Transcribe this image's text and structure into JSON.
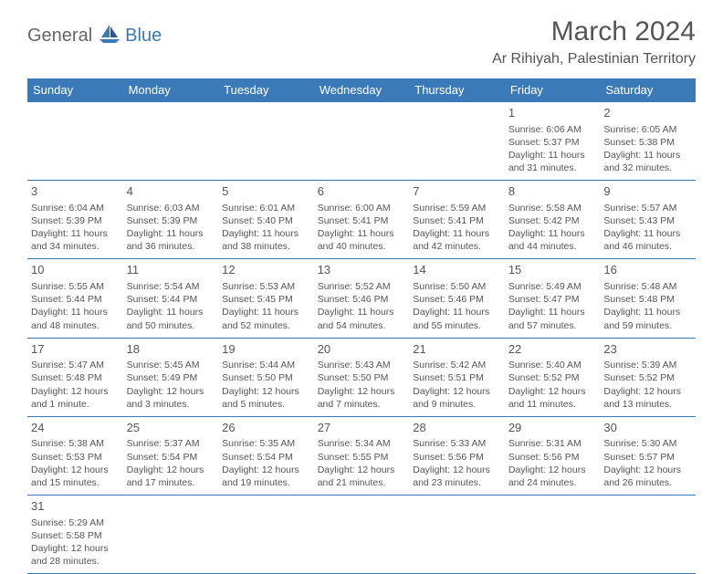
{
  "logo": {
    "text1": "General",
    "text2": "Blue"
  },
  "title": "March 2024",
  "location": "Ar Rihiyah, Palestinian Territory",
  "colors": {
    "accent": "#3a7ab8",
    "text": "#555555",
    "bg": "#ffffff"
  },
  "weekdays": [
    "Sunday",
    "Monday",
    "Tuesday",
    "Wednesday",
    "Thursday",
    "Friday",
    "Saturday"
  ],
  "weeks": [
    [
      null,
      null,
      null,
      null,
      null,
      {
        "n": "1",
        "sr": "6:06 AM",
        "ss": "5:37 PM",
        "dl": "11 hours and 31 minutes."
      },
      {
        "n": "2",
        "sr": "6:05 AM",
        "ss": "5:38 PM",
        "dl": "11 hours and 32 minutes."
      }
    ],
    [
      {
        "n": "3",
        "sr": "6:04 AM",
        "ss": "5:39 PM",
        "dl": "11 hours and 34 minutes."
      },
      {
        "n": "4",
        "sr": "6:03 AM",
        "ss": "5:39 PM",
        "dl": "11 hours and 36 minutes."
      },
      {
        "n": "5",
        "sr": "6:01 AM",
        "ss": "5:40 PM",
        "dl": "11 hours and 38 minutes."
      },
      {
        "n": "6",
        "sr": "6:00 AM",
        "ss": "5:41 PM",
        "dl": "11 hours and 40 minutes."
      },
      {
        "n": "7",
        "sr": "5:59 AM",
        "ss": "5:41 PM",
        "dl": "11 hours and 42 minutes."
      },
      {
        "n": "8",
        "sr": "5:58 AM",
        "ss": "5:42 PM",
        "dl": "11 hours and 44 minutes."
      },
      {
        "n": "9",
        "sr": "5:57 AM",
        "ss": "5:43 PM",
        "dl": "11 hours and 46 minutes."
      }
    ],
    [
      {
        "n": "10",
        "sr": "5:55 AM",
        "ss": "5:44 PM",
        "dl": "11 hours and 48 minutes."
      },
      {
        "n": "11",
        "sr": "5:54 AM",
        "ss": "5:44 PM",
        "dl": "11 hours and 50 minutes."
      },
      {
        "n": "12",
        "sr": "5:53 AM",
        "ss": "5:45 PM",
        "dl": "11 hours and 52 minutes."
      },
      {
        "n": "13",
        "sr": "5:52 AM",
        "ss": "5:46 PM",
        "dl": "11 hours and 54 minutes."
      },
      {
        "n": "14",
        "sr": "5:50 AM",
        "ss": "5:46 PM",
        "dl": "11 hours and 55 minutes."
      },
      {
        "n": "15",
        "sr": "5:49 AM",
        "ss": "5:47 PM",
        "dl": "11 hours and 57 minutes."
      },
      {
        "n": "16",
        "sr": "5:48 AM",
        "ss": "5:48 PM",
        "dl": "11 hours and 59 minutes."
      }
    ],
    [
      {
        "n": "17",
        "sr": "5:47 AM",
        "ss": "5:48 PM",
        "dl": "12 hours and 1 minute."
      },
      {
        "n": "18",
        "sr": "5:45 AM",
        "ss": "5:49 PM",
        "dl": "12 hours and 3 minutes."
      },
      {
        "n": "19",
        "sr": "5:44 AM",
        "ss": "5:50 PM",
        "dl": "12 hours and 5 minutes."
      },
      {
        "n": "20",
        "sr": "5:43 AM",
        "ss": "5:50 PM",
        "dl": "12 hours and 7 minutes."
      },
      {
        "n": "21",
        "sr": "5:42 AM",
        "ss": "5:51 PM",
        "dl": "12 hours and 9 minutes."
      },
      {
        "n": "22",
        "sr": "5:40 AM",
        "ss": "5:52 PM",
        "dl": "12 hours and 11 minutes."
      },
      {
        "n": "23",
        "sr": "5:39 AM",
        "ss": "5:52 PM",
        "dl": "12 hours and 13 minutes."
      }
    ],
    [
      {
        "n": "24",
        "sr": "5:38 AM",
        "ss": "5:53 PM",
        "dl": "12 hours and 15 minutes."
      },
      {
        "n": "25",
        "sr": "5:37 AM",
        "ss": "5:54 PM",
        "dl": "12 hours and 17 minutes."
      },
      {
        "n": "26",
        "sr": "5:35 AM",
        "ss": "5:54 PM",
        "dl": "12 hours and 19 minutes."
      },
      {
        "n": "27",
        "sr": "5:34 AM",
        "ss": "5:55 PM",
        "dl": "12 hours and 21 minutes."
      },
      {
        "n": "28",
        "sr": "5:33 AM",
        "ss": "5:56 PM",
        "dl": "12 hours and 23 minutes."
      },
      {
        "n": "29",
        "sr": "5:31 AM",
        "ss": "5:56 PM",
        "dl": "12 hours and 24 minutes."
      },
      {
        "n": "30",
        "sr": "5:30 AM",
        "ss": "5:57 PM",
        "dl": "12 hours and 26 minutes."
      }
    ],
    [
      {
        "n": "31",
        "sr": "5:29 AM",
        "ss": "5:58 PM",
        "dl": "12 hours and 28 minutes."
      },
      null,
      null,
      null,
      null,
      null,
      null
    ]
  ],
  "labels": {
    "sunrise": "Sunrise:",
    "sunset": "Sunset:",
    "daylight": "Daylight:"
  }
}
